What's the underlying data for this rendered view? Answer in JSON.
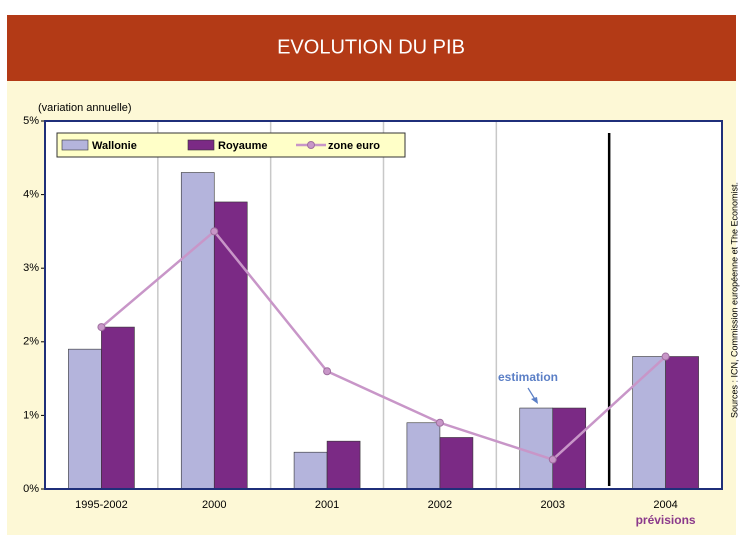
{
  "chart_data": {
    "type": "bar",
    "title": "EVOLUTION DU PIB",
    "y_label": "(variation annuelle)",
    "categories": [
      "1995-2002",
      "2000",
      "2001",
      "2002",
      "2003",
      "2004"
    ],
    "series": [
      {
        "name": "Wallonie",
        "type": "bar",
        "color": "#b4b4dc",
        "values": [
          1.9,
          4.3,
          0.5,
          0.9,
          1.1,
          1.8
        ]
      },
      {
        "name": "Royaume",
        "type": "bar",
        "color": "#7b2a85",
        "values": [
          2.2,
          3.9,
          0.65,
          0.7,
          1.1,
          1.8
        ]
      },
      {
        "name": "zone euro",
        "type": "line",
        "color": "#c896c8",
        "values": [
          2.2,
          3.5,
          1.6,
          0.9,
          0.4,
          1.8
        ]
      }
    ],
    "ylim": [
      0,
      5
    ],
    "yticks": [
      {
        "value": 0,
        "label": "0%"
      },
      {
        "value": 1,
        "label": "1%"
      },
      {
        "value": 2,
        "label": "2%"
      },
      {
        "value": 3,
        "label": "3%"
      },
      {
        "value": 4,
        "label": "4%"
      },
      {
        "value": 5,
        "label": "5%"
      }
    ],
    "grid": false,
    "annotations": [
      "estimation",
      "prévisions"
    ],
    "source": "Sources : ICN, Commission européenne et The Economist."
  }
}
